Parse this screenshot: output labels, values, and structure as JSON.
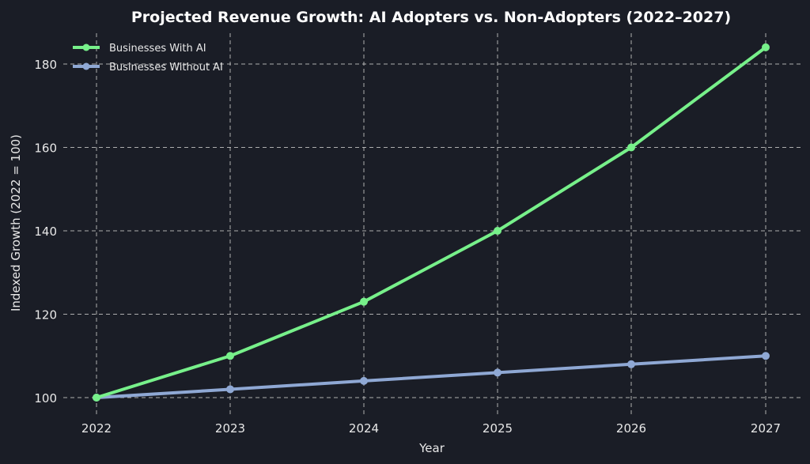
{
  "chart_data": {
    "type": "line",
    "title": "Projected Revenue Growth: AI Adopters vs. Non-Adopters (2022–2027)",
    "xlabel": "Year",
    "ylabel": "Indexed Growth (2022 = 100)",
    "x": [
      2022,
      2023,
      2024,
      2025,
      2026,
      2027
    ],
    "x_tick_labels": [
      "2022",
      "2023",
      "2024",
      "2025",
      "2026",
      "2027"
    ],
    "y_ticks": [
      100,
      120,
      140,
      160,
      180
    ],
    "y_tick_labels": [
      "100",
      "120",
      "140",
      "160",
      "180"
    ],
    "ylim": [
      96,
      188
    ],
    "grid": true,
    "legend_position": "top-left",
    "series": [
      {
        "name": "Businesses With AI",
        "color": "#77f08a",
        "values": [
          100,
          110,
          123,
          140,
          160,
          184
        ]
      },
      {
        "name": "Businesses Without AI",
        "color": "#8fa8d4",
        "values": [
          100,
          102,
          104,
          106,
          108,
          110
        ]
      }
    ]
  },
  "theme": {
    "background": "#1a1d26",
    "text": "#e8e8e8"
  }
}
